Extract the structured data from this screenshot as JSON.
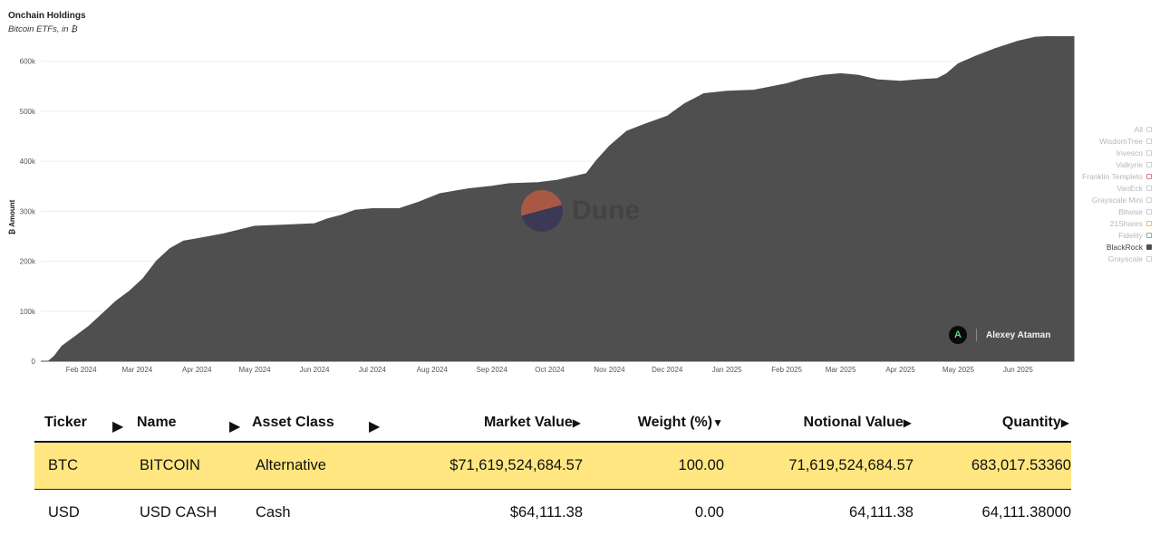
{
  "chart_data": {
    "type": "area",
    "title": "Onchain Holdings",
    "subtitle": "Bitcoin ETFs, in ₿",
    "ylabel": "₿ Amount",
    "xlabel": "",
    "xlim": [
      "2024-01-11",
      "2025-06-30"
    ],
    "ylim": [
      0,
      650000
    ],
    "y_ticks": [
      0,
      100000,
      200000,
      300000,
      400000,
      500000,
      600000
    ],
    "y_tick_labels": [
      "0",
      "100k",
      "200k",
      "300k",
      "400k",
      "500k",
      "600k"
    ],
    "x_ticks": [
      "2024-02-01",
      "2024-03-01",
      "2024-04-01",
      "2024-05-01",
      "2024-06-01",
      "2024-07-01",
      "2024-08-01",
      "2024-09-01",
      "2024-10-01",
      "2024-11-01",
      "2024-12-01",
      "2025-01-01",
      "2025-02-01",
      "2025-03-01",
      "2025-04-01",
      "2025-05-01",
      "2025-06-01"
    ],
    "x_tick_labels": [
      "Feb 2024",
      "Mar 2024",
      "Apr 2024",
      "May 2024",
      "Jun 2024",
      "Jul 2024",
      "Aug 2024",
      "Sep 2024",
      "Oct 2024",
      "Nov 2024",
      "Dec 2024",
      "Jan 2025",
      "Feb 2025",
      "Mar 2025",
      "Apr 2025",
      "May 2025",
      "Jun 2025"
    ],
    "grid": true,
    "legend_position": "right",
    "series": [
      {
        "name": "BlackRock",
        "color": "#4f4f4f",
        "points": [
          [
            "2024-01-11",
            0
          ],
          [
            "2024-01-15",
            0
          ],
          [
            "2024-01-18",
            10000
          ],
          [
            "2024-01-22",
            30000
          ],
          [
            "2024-01-29",
            50000
          ],
          [
            "2024-02-05",
            70000
          ],
          [
            "2024-02-12",
            95000
          ],
          [
            "2024-02-19",
            120000
          ],
          [
            "2024-02-26",
            140000
          ],
          [
            "2024-03-04",
            165000
          ],
          [
            "2024-03-11",
            200000
          ],
          [
            "2024-03-18",
            225000
          ],
          [
            "2024-03-25",
            240000
          ],
          [
            "2024-04-01",
            245000
          ],
          [
            "2024-04-15",
            255000
          ],
          [
            "2024-05-01",
            270000
          ],
          [
            "2024-05-15",
            272000
          ],
          [
            "2024-06-01",
            275000
          ],
          [
            "2024-06-08",
            285000
          ],
          [
            "2024-06-15",
            292000
          ],
          [
            "2024-06-22",
            302000
          ],
          [
            "2024-07-01",
            305000
          ],
          [
            "2024-07-15",
            305000
          ],
          [
            "2024-07-25",
            318000
          ],
          [
            "2024-08-05",
            335000
          ],
          [
            "2024-08-20",
            345000
          ],
          [
            "2024-09-01",
            350000
          ],
          [
            "2024-09-10",
            355000
          ],
          [
            "2024-09-25",
            357000
          ],
          [
            "2024-10-05",
            362000
          ],
          [
            "2024-10-20",
            375000
          ],
          [
            "2024-10-25",
            400000
          ],
          [
            "2024-11-01",
            430000
          ],
          [
            "2024-11-10",
            460000
          ],
          [
            "2024-11-20",
            475000
          ],
          [
            "2024-12-01",
            490000
          ],
          [
            "2024-12-10",
            515000
          ],
          [
            "2024-12-20",
            535000
          ],
          [
            "2025-01-01",
            540000
          ],
          [
            "2025-01-15",
            542000
          ],
          [
            "2025-02-01",
            555000
          ],
          [
            "2025-02-10",
            565000
          ],
          [
            "2025-02-20",
            572000
          ],
          [
            "2025-03-01",
            575000
          ],
          [
            "2025-03-10",
            572000
          ],
          [
            "2025-03-20",
            563000
          ],
          [
            "2025-04-01",
            560000
          ],
          [
            "2025-04-10",
            563000
          ],
          [
            "2025-04-20",
            565000
          ],
          [
            "2025-04-25",
            575000
          ],
          [
            "2025-05-01",
            595000
          ],
          [
            "2025-05-10",
            610000
          ],
          [
            "2025-05-20",
            625000
          ],
          [
            "2025-06-01",
            640000
          ],
          [
            "2025-06-10",
            648000
          ],
          [
            "2025-06-20",
            650000
          ],
          [
            "2025-06-30",
            662000
          ]
        ]
      }
    ]
  },
  "legend": [
    {
      "label": "All",
      "color": "#cfcfcf",
      "active": false
    },
    {
      "label": "WisdomTree",
      "color": "#cfcfcf",
      "active": false
    },
    {
      "label": "Invesco",
      "color": "#cfcfcf",
      "active": false
    },
    {
      "label": "Valkyrie",
      "color": "#cfcfcf",
      "active": false
    },
    {
      "label": "Franklin Templeto",
      "color": "#e07b7b",
      "active": false
    },
    {
      "label": "VanEck",
      "color": "#cfcfcf",
      "active": false
    },
    {
      "label": "Grayscale Mini",
      "color": "#cfcfcf",
      "active": false
    },
    {
      "label": "Bitwise",
      "color": "#cfcfcf",
      "active": false
    },
    {
      "label": "21Shares",
      "color": "#e8c06a",
      "active": false
    },
    {
      "label": "Fidelity",
      "color": "#7ab88a",
      "active": false
    },
    {
      "label": "BlackRock",
      "color": "#4f4f4f",
      "active": true
    },
    {
      "label": "Grayscale",
      "color": "#cfcfcf",
      "active": false
    }
  ],
  "watermark": {
    "text": "Dune"
  },
  "author": {
    "name": "Alexey Ataman",
    "logo_letter": "A"
  },
  "holdings_table": {
    "columns": [
      {
        "label": "Ticker",
        "arrow": "▶"
      },
      {
        "label": "Name",
        "arrow": "▶"
      },
      {
        "label": "Asset Class",
        "arrow": "▶"
      },
      {
        "label": "Market Value",
        "arrow": "▶"
      },
      {
        "label": "Weight (%)",
        "arrow": "▼"
      },
      {
        "label": "Notional Value",
        "arrow": "▶"
      },
      {
        "label": "Quantity",
        "arrow": "▶"
      }
    ],
    "rows": [
      {
        "ticker": "BTC",
        "name": "BITCOIN",
        "asset_class": "Alternative",
        "market_value": "$71,619,524,684.57",
        "weight": "100.00",
        "notional_value": "71,619,524,684.57",
        "quantity": "683,017.53360"
      },
      {
        "ticker": "USD",
        "name": "USD CASH",
        "asset_class": "Cash",
        "market_value": "$64,111.38",
        "weight": "0.00",
        "notional_value": "64,111.38",
        "quantity": "64,111.38000"
      }
    ]
  }
}
